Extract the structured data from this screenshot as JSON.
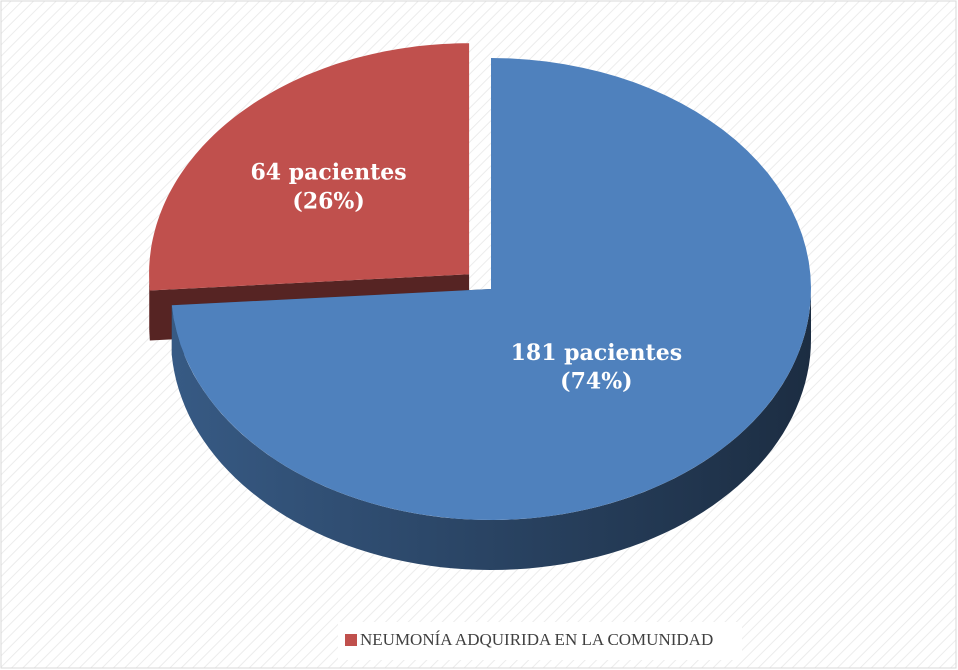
{
  "chart_data": {
    "type": "pie",
    "categories": [
      null,
      "NEUMONÍA ADQUIRIDA EN LA COMUNIDAD"
    ],
    "values": [
      181,
      64
    ],
    "value_labels": [
      [
        "181 pacientes",
        "(74%)"
      ],
      [
        "64 pacientes",
        "(26%)"
      ]
    ],
    "colors": [
      "#4f81bd",
      "#c0504d"
    ],
    "legend": "bottom"
  }
}
